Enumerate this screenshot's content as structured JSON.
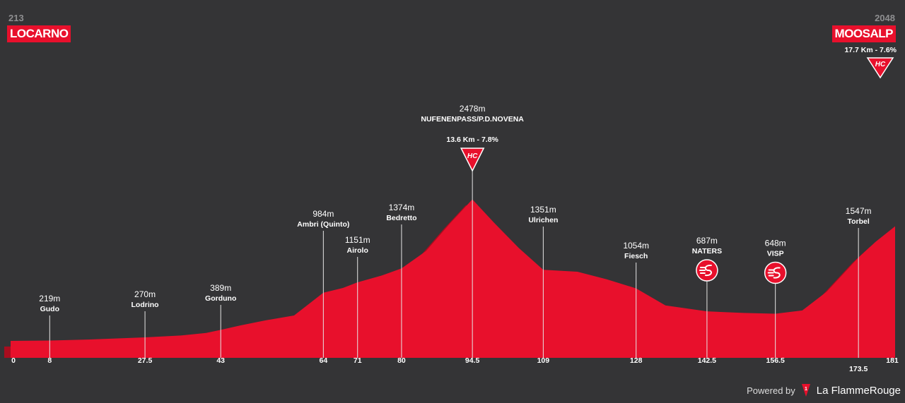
{
  "start": {
    "altitude": "213",
    "name": "LOCARNO"
  },
  "finish": {
    "altitude": "2048",
    "name": "MOOSALP",
    "climb_stats": "17.7 Km - 7.6%",
    "category": "HC"
  },
  "summit": {
    "category": "HC"
  },
  "footer": {
    "powered_by": "Powered by",
    "brand": "La FlammeRouge"
  },
  "colors": {
    "background": "#343436",
    "profile_fill": "#e8102c",
    "profile_shadow": "#a80d1f",
    "label_badge": "#e8102c"
  },
  "chart_data": {
    "type": "area",
    "x_unit": "km",
    "y_unit": "m",
    "xlim": [
      0,
      181
    ],
    "profile": [
      [
        0,
        213
      ],
      [
        8,
        219
      ],
      [
        15,
        232
      ],
      [
        27.5,
        270
      ],
      [
        35,
        300
      ],
      [
        40,
        340
      ],
      [
        43,
        389
      ],
      [
        47,
        460
      ],
      [
        52,
        540
      ],
      [
        58,
        620
      ],
      [
        64,
        984
      ],
      [
        68,
        1060
      ],
      [
        71,
        1151
      ],
      [
        76,
        1260
      ],
      [
        80,
        1374
      ],
      [
        85,
        1650
      ],
      [
        90,
        2100
      ],
      [
        94.5,
        2478
      ],
      [
        99,
        2100
      ],
      [
        104,
        1700
      ],
      [
        109,
        1351
      ],
      [
        116,
        1320
      ],
      [
        122,
        1200
      ],
      [
        128,
        1054
      ],
      [
        134,
        780
      ],
      [
        142.5,
        687
      ],
      [
        150,
        660
      ],
      [
        156.5,
        648
      ],
      [
        162,
        700
      ],
      [
        167,
        1000
      ],
      [
        173.5,
        1547
      ],
      [
        177,
        1800
      ],
      [
        181,
        2048
      ]
    ],
    "ticks": [
      {
        "x": 0,
        "label": "0"
      },
      {
        "x": 8,
        "label": "8"
      },
      {
        "x": 27.5,
        "label": "27.5"
      },
      {
        "x": 43,
        "label": "43"
      },
      {
        "x": 64,
        "label": "64"
      },
      {
        "x": 71,
        "label": "71"
      },
      {
        "x": 80,
        "label": "80"
      },
      {
        "x": 94.5,
        "label": "94.5"
      },
      {
        "x": 109,
        "label": "109"
      },
      {
        "x": 128,
        "label": "128"
      },
      {
        "x": 142.5,
        "label": "142.5"
      },
      {
        "x": 156.5,
        "label": "156.5"
      },
      {
        "x": 173.5,
        "label": "173.5"
      },
      {
        "x": 181,
        "label": "181"
      }
    ],
    "waypoints": [
      {
        "x": 8,
        "altitude": "219m",
        "name": "Gudo"
      },
      {
        "x": 27.5,
        "altitude": "270m",
        "name": "Lodrino"
      },
      {
        "x": 43,
        "altitude": "389m",
        "name": "Gorduno"
      },
      {
        "x": 64,
        "altitude": "984m",
        "name": "Ambri (Quinto)"
      },
      {
        "x": 71,
        "altitude": "1151m",
        "name": "Airolo"
      },
      {
        "x": 80,
        "altitude": "1374m",
        "name": "Bedretto"
      },
      {
        "x": 94.5,
        "altitude": "2478m",
        "name": "NUFENENPASS/P.D.NOVENA",
        "climb_stats": "13.6 Km - 7.8%",
        "category": "HC"
      },
      {
        "x": 109,
        "altitude": "1351m",
        "name": "Ulrichen"
      },
      {
        "x": 128,
        "altitude": "1054m",
        "name": "Fiesch"
      },
      {
        "x": 142.5,
        "altitude": "687m",
        "name": "NATERS",
        "sprint": true
      },
      {
        "x": 156.5,
        "altitude": "648m",
        "name": "VISP",
        "sprint": true
      },
      {
        "x": 173.5,
        "altitude": "1547m",
        "name": "Torbel"
      }
    ]
  }
}
